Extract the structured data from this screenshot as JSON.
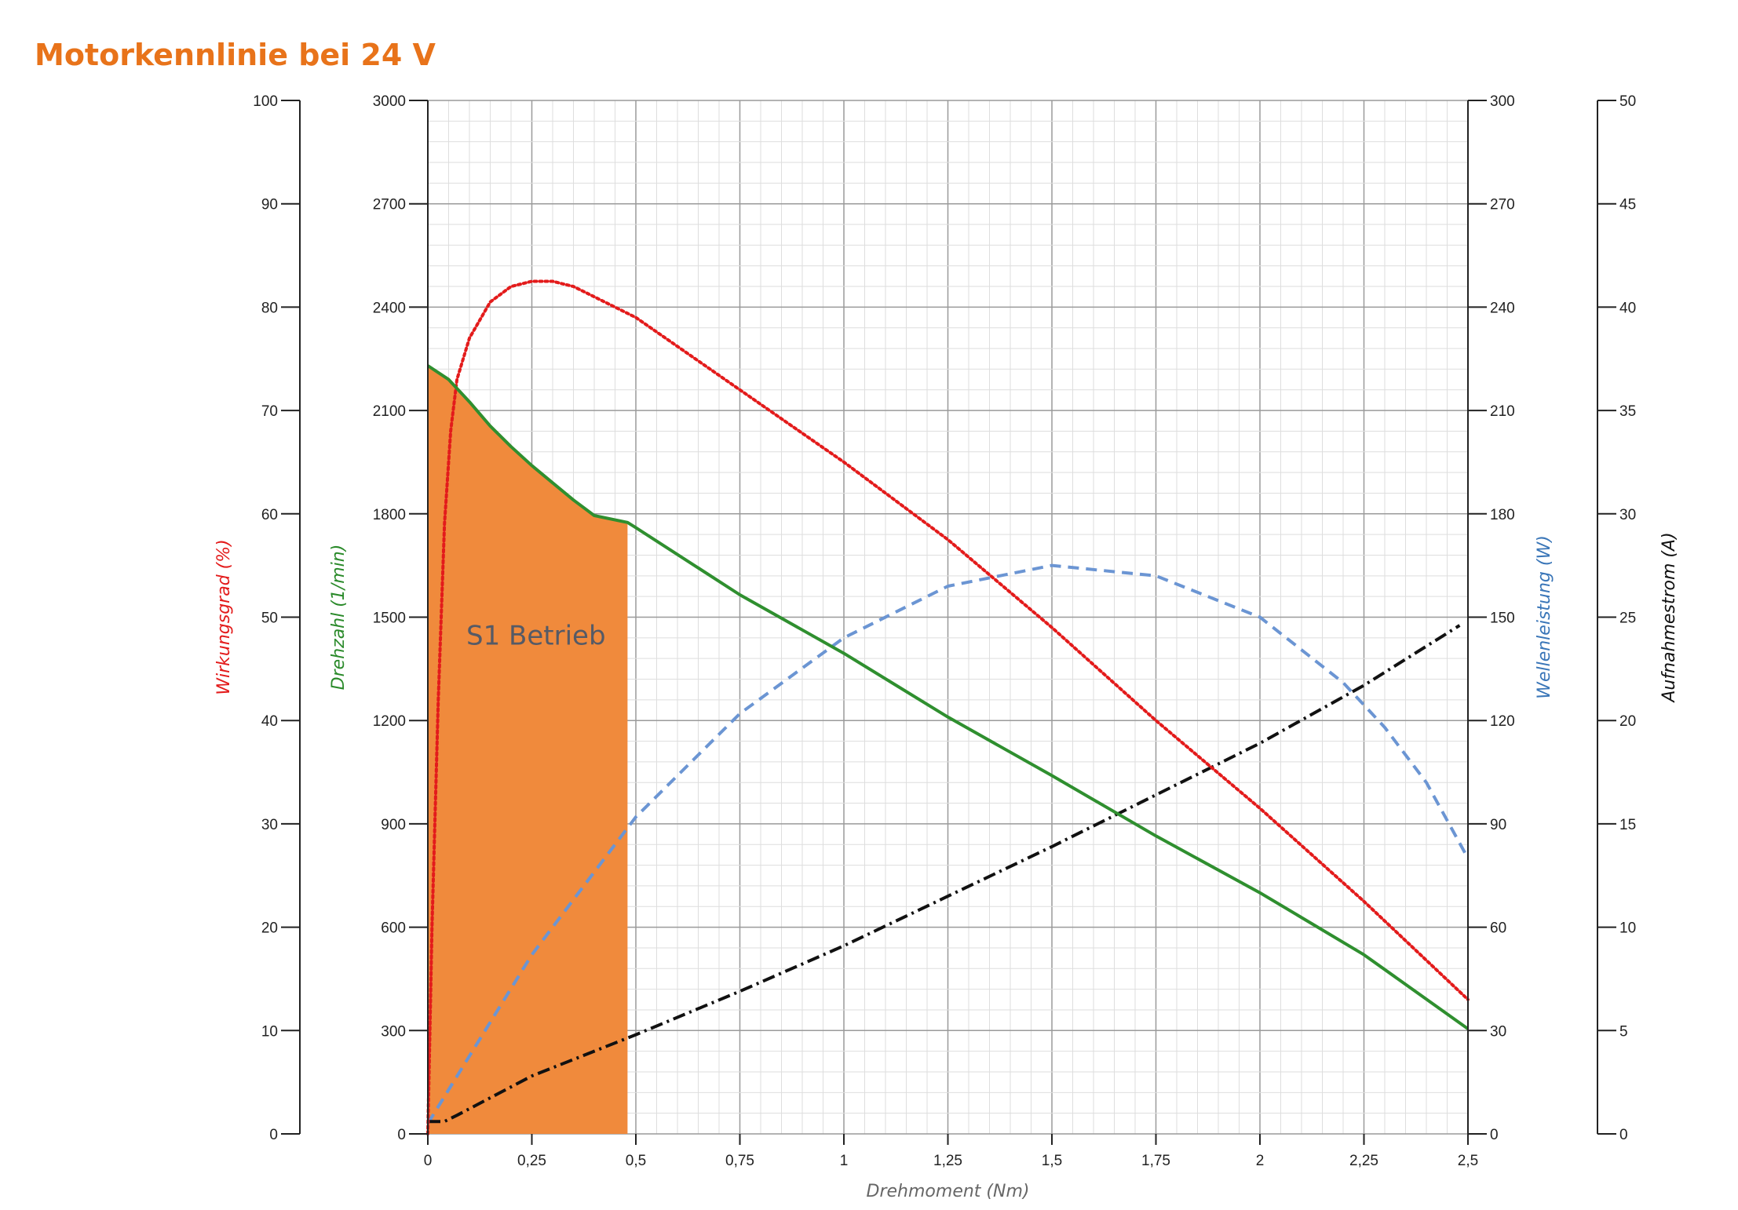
{
  "title": "Motorkennlinie bei 24 V",
  "chart_data": {
    "type": "line",
    "title": "Motorkennlinie bei 24 V",
    "xlabel": "Drehmoment (Nm)",
    "x_ticks": [
      "0",
      "0,25",
      "0,5",
      "0,75",
      "1",
      "1,25",
      "1,5",
      "1,75",
      "2",
      "2,25",
      "2,5"
    ],
    "xlim": [
      0,
      2.5
    ],
    "grid": true,
    "axes": [
      {
        "id": "eff",
        "label": "Wirkungsgrad (%)",
        "color": "#e31b1b",
        "ylim": [
          0,
          100
        ],
        "ticks": [
          "0",
          "10",
          "20",
          "30",
          "40",
          "50",
          "60",
          "70",
          "80",
          "90",
          "100"
        ]
      },
      {
        "id": "rpm",
        "label": "Drehzahl (1/min)",
        "color": "#2a8a2a",
        "ylim": [
          0,
          3000
        ],
        "ticks": [
          "0",
          "300",
          "600",
          "900",
          "1200",
          "1500",
          "1800",
          "2100",
          "2400",
          "2700",
          "3000"
        ]
      },
      {
        "id": "power",
        "label": "Wellenleistung (W)",
        "color": "#3a76b8",
        "ylim": [
          0,
          300
        ],
        "ticks": [
          "0",
          "30",
          "60",
          "90",
          "120",
          "150",
          "180",
          "210",
          "240",
          "270",
          "300"
        ]
      },
      {
        "id": "current",
        "label": "Aufnahmestrom (A)",
        "color": "#111111",
        "ylim": [
          0,
          50
        ],
        "ticks": [
          "0",
          "5",
          "10",
          "15",
          "20",
          "25",
          "30",
          "35",
          "40",
          "45",
          "50"
        ]
      }
    ],
    "series": [
      {
        "name": "Drehzahl",
        "axis": "rpm",
        "color": "#2f8f2f",
        "style": "solid",
        "x": [
          0,
          0.05,
          0.1,
          0.15,
          0.2,
          0.25,
          0.3,
          0.35,
          0.4,
          0.48,
          0.5,
          0.75,
          1,
          1.25,
          1.5,
          1.75,
          2,
          2.25,
          2.5
        ],
        "y": [
          2230,
          2190,
          2125,
          2055,
          1995,
          1940,
          1890,
          1840,
          1795,
          1775,
          1760,
          1565,
          1395,
          1210,
          1040,
          865,
          700,
          520,
          305
        ]
      },
      {
        "name": "Wirkungsgrad",
        "axis": "eff",
        "color": "#e31b1b",
        "style": "dotted",
        "x": [
          0,
          0.01,
          0.025,
          0.04,
          0.055,
          0.07,
          0.1,
          0.15,
          0.2,
          0.25,
          0.3,
          0.35,
          0.4,
          0.5,
          0.75,
          1,
          1.25,
          1.5,
          1.75,
          2,
          2.25,
          2.5
        ],
        "y": [
          0,
          20,
          42,
          59,
          68,
          73,
          77,
          80.5,
          82,
          82.5,
          82.5,
          82,
          81,
          79,
          72,
          65,
          57.5,
          49,
          40,
          31.5,
          22.5,
          13
        ]
      },
      {
        "name": "Wellenleistung",
        "axis": "power",
        "color": "#6b95d3",
        "style": "dashed",
        "x": [
          0,
          0.25,
          0.5,
          0.75,
          1,
          1.25,
          1.5,
          1.75,
          2,
          2.2,
          2.3,
          2.4,
          2.5
        ],
        "y": [
          3,
          52,
          92,
          122,
          144,
          159,
          165,
          162,
          150,
          131,
          118,
          102,
          80
        ]
      },
      {
        "name": "Aufnahmestrom",
        "axis": "current",
        "color": "#111111",
        "style": "dashdot",
        "x": [
          0,
          0.04,
          0.07,
          0.25,
          0.5,
          0.75,
          1,
          1.25,
          1.5,
          1.75,
          2,
          2.25,
          2.48
        ],
        "y": [
          0.6,
          0.6,
          0.9,
          2.8,
          4.8,
          6.9,
          9.1,
          11.5,
          13.9,
          16.4,
          18.9,
          21.7,
          24.6
        ]
      }
    ],
    "annotations": [
      {
        "text": "S1 Betrieb",
        "type": "shaded-area",
        "x_range": [
          0,
          0.48
        ],
        "follows_series": "Drehzahl",
        "color": "#f08a3c"
      }
    ]
  }
}
